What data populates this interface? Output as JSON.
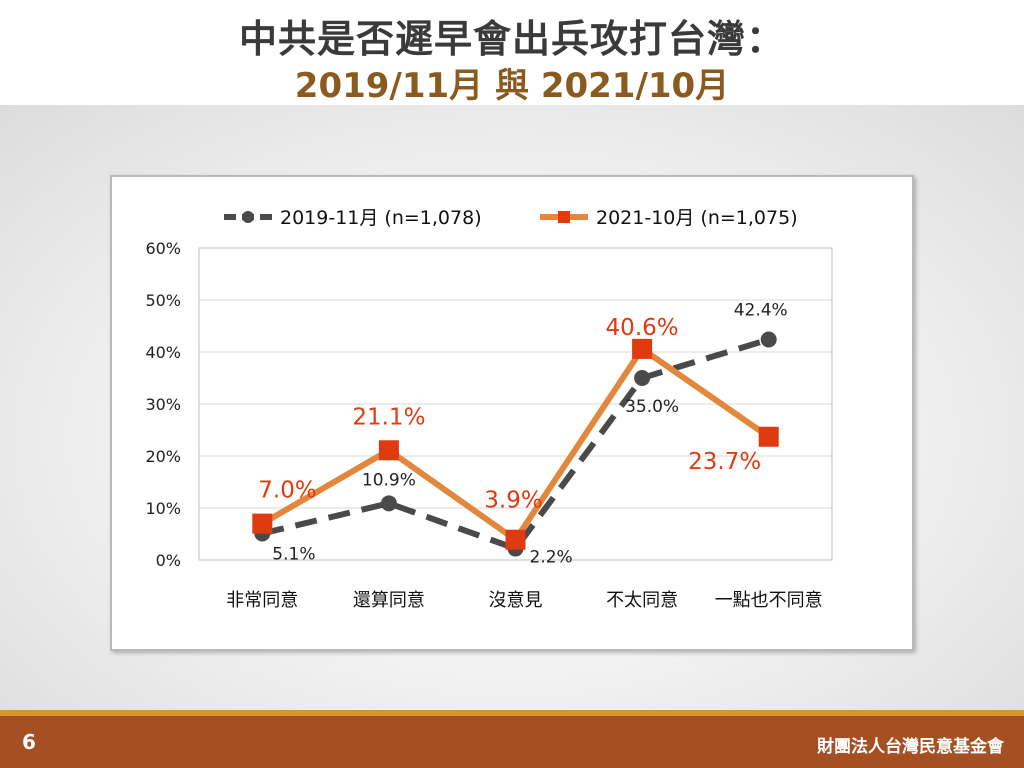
{
  "slide": {
    "title_line1": "中共是否遲早會出兵攻打台灣：",
    "title_line2": "2019/11月 與 2021/10月",
    "page_number": "6",
    "organization": "財團法人台灣民意基金會"
  },
  "chart_data": {
    "type": "line",
    "categories": [
      "非常同意",
      "還算同意",
      "沒意見",
      "不太同意",
      "一點也不同意"
    ],
    "y_ticks": [
      "0%",
      "10%",
      "20%",
      "30%",
      "40%",
      "50%",
      "60%"
    ],
    "ylim": [
      0,
      60
    ],
    "grid": true,
    "legend_position": "top",
    "series": [
      {
        "name": "2019-11月  (n=1,078)",
        "values": [
          5.1,
          10.9,
          2.2,
          35.0,
          42.4
        ],
        "labels": [
          "5.1%",
          "10.9%",
          "2.2%",
          "35.0%",
          "42.4%"
        ],
        "color": "#4a4a4a",
        "style": "dashed",
        "marker": "circle"
      },
      {
        "name": "2021-10月  (n=1,075)",
        "values": [
          7.0,
          21.1,
          3.9,
          40.6,
          23.7
        ],
        "labels": [
          "7.0%",
          "21.1%",
          "3.9%",
          "40.6%",
          "23.7%"
        ],
        "color": "#e2873c",
        "marker_color": "#e03a10",
        "label_color": "#e03a10",
        "style": "solid",
        "marker": "square"
      }
    ]
  }
}
